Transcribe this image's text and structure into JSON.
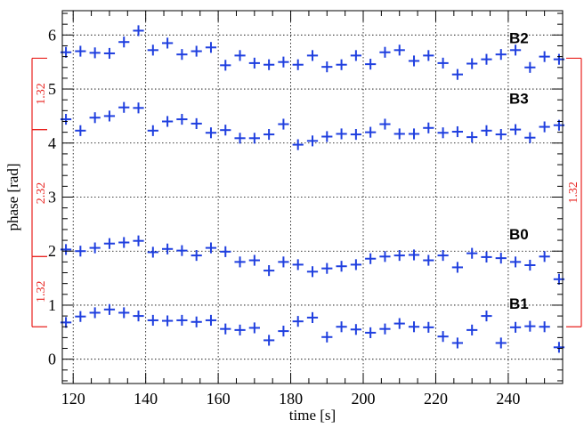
{
  "chart_data": {
    "type": "scatter",
    "xlabel": "time [s]",
    "ylabel": "phase [rad]",
    "xlim": [
      117,
      255
    ],
    "ylim": [
      -0.45,
      6.45
    ],
    "grid": true,
    "x_ticks": [
      120,
      140,
      160,
      180,
      200,
      220,
      240
    ],
    "y_ticks": [
      0,
      1,
      2,
      3,
      4,
      5,
      6
    ],
    "marker_color": "#1f3fdf",
    "bracket_color": "#e8211e",
    "x_error": 1.5,
    "y_error": 0.1,
    "x": [
      118,
      122,
      126,
      130,
      134,
      138,
      142,
      146,
      150,
      154,
      158,
      162,
      166,
      170,
      174,
      178,
      182,
      186,
      190,
      194,
      198,
      202,
      206,
      210,
      214,
      218,
      222,
      226,
      230,
      234,
      238,
      242,
      246,
      250,
      254
    ],
    "series": [
      {
        "name": "B2",
        "values": [
          5.68,
          5.7,
          5.67,
          5.66,
          5.87,
          6.08,
          5.72,
          5.85,
          5.64,
          5.7,
          5.77,
          5.44,
          5.62,
          5.48,
          5.45,
          5.5,
          5.45,
          5.62,
          5.41,
          5.45,
          5.62,
          5.46,
          5.68,
          5.72,
          5.52,
          5.62,
          5.48,
          5.27,
          5.47,
          5.55,
          5.64,
          5.72,
          5.4,
          5.6,
          5.55
        ]
      },
      {
        "name": "B3",
        "values": [
          4.44,
          4.23,
          4.47,
          4.5,
          4.66,
          4.65,
          4.23,
          4.4,
          4.44,
          4.36,
          4.19,
          4.24,
          4.09,
          4.09,
          4.16,
          4.35,
          3.97,
          4.04,
          4.12,
          4.17,
          4.16,
          4.2,
          4.35,
          4.17,
          4.17,
          4.28,
          4.19,
          4.21,
          4.11,
          4.23,
          4.16,
          4.25,
          4.1,
          4.3,
          4.33
        ]
      },
      {
        "name": "B0",
        "values": [
          2.03,
          2.0,
          2.06,
          2.14,
          2.16,
          2.19,
          1.98,
          2.04,
          2.01,
          1.92,
          2.06,
          1.99,
          1.8,
          1.83,
          1.64,
          1.8,
          1.75,
          1.62,
          1.68,
          1.72,
          1.75,
          1.86,
          1.9,
          1.92,
          1.93,
          1.83,
          1.92,
          1.7,
          1.96,
          1.89,
          1.87,
          1.8,
          1.74,
          1.9,
          1.48
        ]
      },
      {
        "name": "B1",
        "values": [
          0.68,
          0.79,
          0.86,
          0.92,
          0.86,
          0.8,
          0.72,
          0.71,
          0.72,
          0.69,
          0.72,
          0.56,
          0.54,
          0.58,
          0.35,
          0.52,
          0.7,
          0.77,
          0.41,
          0.6,
          0.55,
          0.49,
          0.56,
          0.66,
          0.6,
          0.59,
          0.42,
          0.3,
          0.54,
          0.8,
          0.3,
          0.59,
          0.61,
          0.6,
          0.22
        ]
      }
    ],
    "series_label_y": [
      5.95,
      4.83,
      2.32,
      1.03
    ],
    "left_brackets": [
      {
        "from": 0.6,
        "to": 1.9,
        "label": "1.32"
      },
      {
        "from": 1.9,
        "to": 4.25,
        "label": "2.32"
      },
      {
        "from": 4.25,
        "to": 5.57,
        "label": "1.32"
      }
    ],
    "right_brackets": [
      {
        "from": 0.6,
        "to": 5.57,
        "label": "1.32"
      }
    ]
  }
}
